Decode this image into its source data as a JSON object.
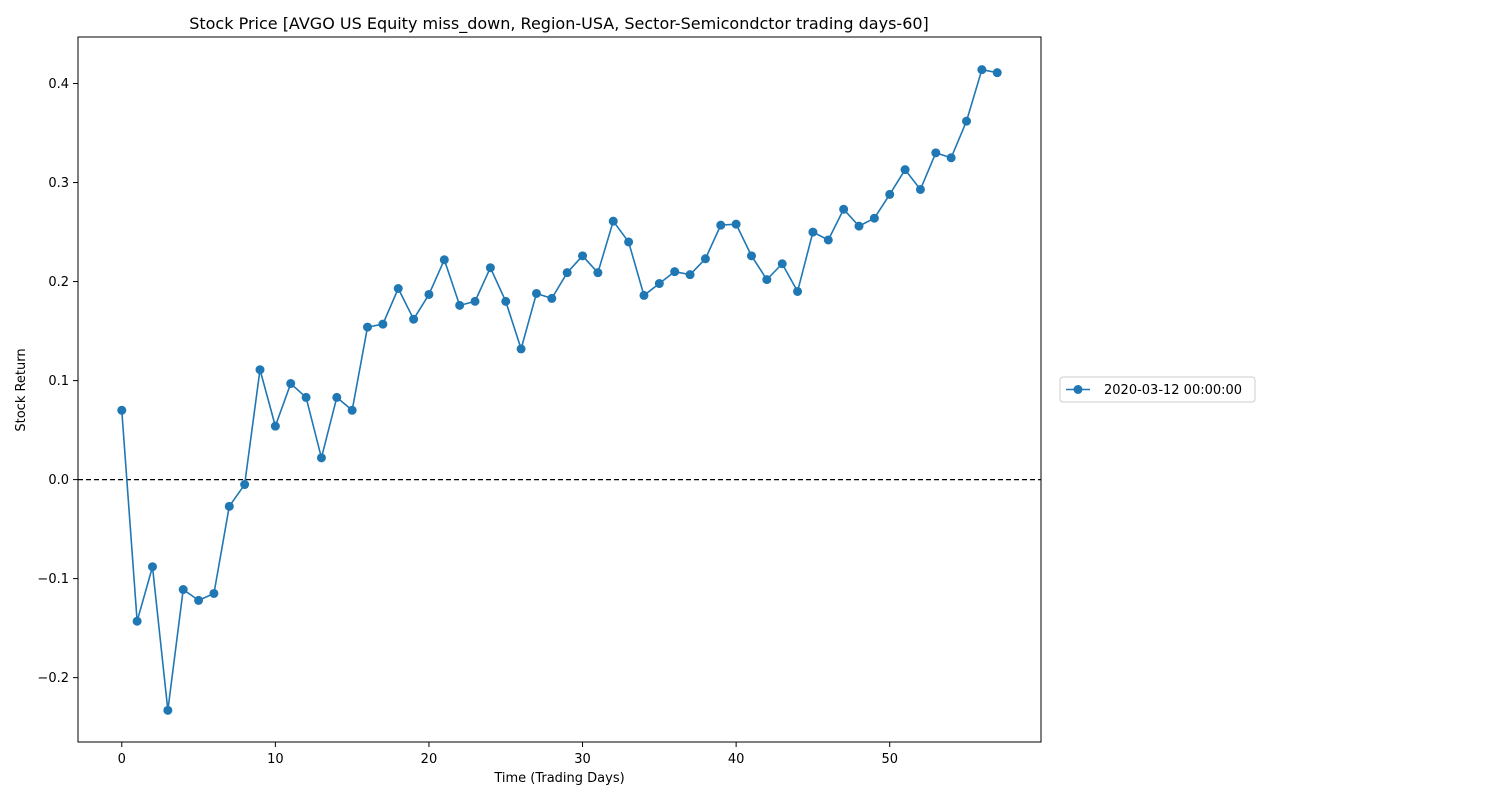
{
  "chart_data": {
    "type": "line",
    "title": "Stock Price [AVGO US Equity miss_down, Region-USA, Sector-Semicondctor trading days-60]",
    "xlabel": "Time (Trading Days)",
    "ylabel": "Stock Return",
    "xlim": [
      -2.85,
      59.85
    ],
    "ylim": [
      -0.265,
      0.447
    ],
    "xticks": [
      0,
      10,
      20,
      30,
      40,
      50
    ],
    "xtick_labels": [
      "0",
      "10",
      "20",
      "30",
      "40",
      "50"
    ],
    "yticks": [
      -0.2,
      -0.1,
      0.0,
      0.1,
      0.2,
      0.3,
      0.4
    ],
    "ytick_labels": [
      "−0.2",
      "−0.1",
      "0.0",
      "0.1",
      "0.2",
      "0.3",
      "0.4"
    ],
    "reference_line": {
      "y": 0.0,
      "style": "dashed",
      "color": "#000000"
    },
    "grid": false,
    "legend_position": "right, outside plot area, vertically centered",
    "series": [
      {
        "name": "2020-03-12 00:00:00",
        "color": "#1f77b4",
        "marker": "circle",
        "x": [
          0,
          1,
          2,
          3,
          4,
          5,
          6,
          7,
          8,
          9,
          10,
          11,
          12,
          13,
          14,
          15,
          16,
          17,
          18,
          19,
          20,
          21,
          22,
          23,
          24,
          25,
          26,
          27,
          28,
          29,
          30,
          31,
          32,
          33,
          34,
          35,
          36,
          37,
          38,
          39,
          40,
          41,
          42,
          43,
          44,
          45,
          46,
          47,
          48,
          49,
          50,
          51,
          52,
          53,
          54,
          55,
          56,
          57
        ],
        "values": [
          0.07,
          -0.143,
          -0.088,
          -0.233,
          -0.111,
          -0.122,
          -0.115,
          -0.027,
          -0.005,
          0.111,
          0.054,
          0.097,
          0.083,
          0.022,
          0.083,
          0.07,
          0.154,
          0.157,
          0.193,
          0.162,
          0.187,
          0.222,
          0.176,
          0.18,
          0.214,
          0.18,
          0.132,
          0.188,
          0.183,
          0.209,
          0.226,
          0.209,
          0.261,
          0.24,
          0.186,
          0.198,
          0.21,
          0.207,
          0.223,
          0.257,
          0.258,
          0.226,
          0.202,
          0.218,
          0.19,
          0.25,
          0.242,
          0.273,
          0.256,
          0.264,
          0.288,
          0.313,
          0.293,
          0.33,
          0.325,
          0.362,
          0.414,
          0.411
        ]
      }
    ]
  }
}
